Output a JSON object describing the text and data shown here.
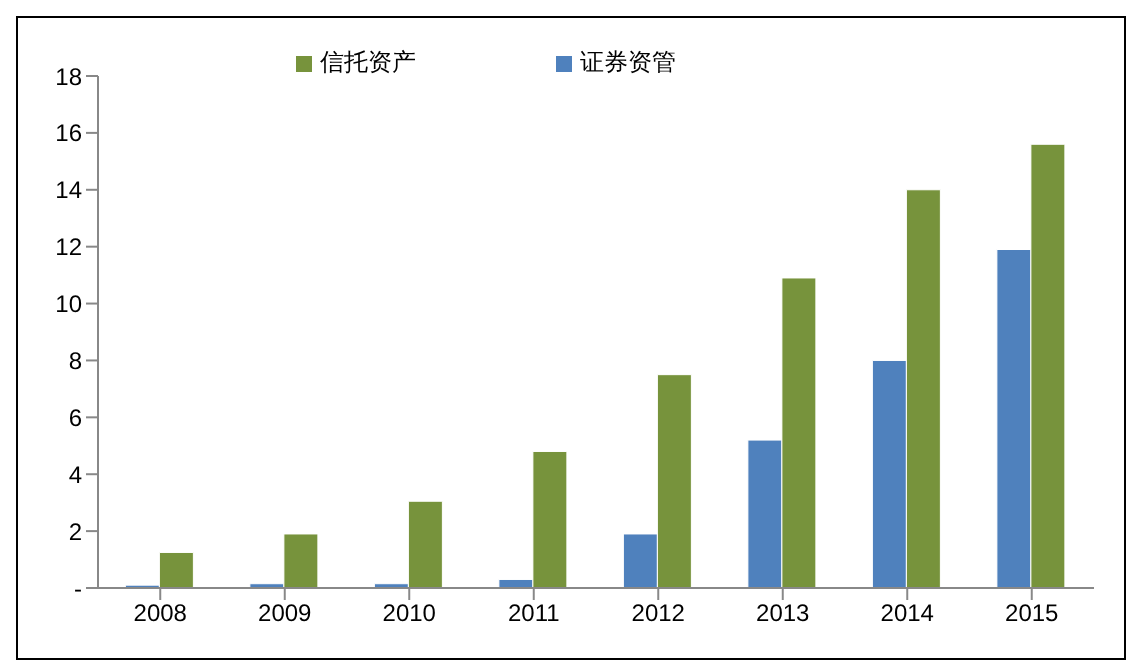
{
  "chart_data": {
    "type": "bar",
    "categories": [
      "2008",
      "2009",
      "2010",
      "2011",
      "2012",
      "2013",
      "2014",
      "2015"
    ],
    "series": [
      {
        "name": "证券资管",
        "color": "#4f81bd",
        "values": [
          0.1,
          0.15,
          0.15,
          0.3,
          1.9,
          5.2,
          8.0,
          11.9
        ]
      },
      {
        "name": "信托资产",
        "color": "#77933c",
        "values": [
          1.25,
          1.9,
          3.05,
          4.8,
          7.5,
          10.9,
          14.0,
          15.6
        ]
      }
    ],
    "ylim": [
      0,
      18
    ],
    "yticks": [
      {
        "value": 0,
        "label": "-"
      },
      2,
      4,
      6,
      8,
      10,
      12,
      14,
      16,
      18
    ],
    "grid": false,
    "legend": "top"
  }
}
